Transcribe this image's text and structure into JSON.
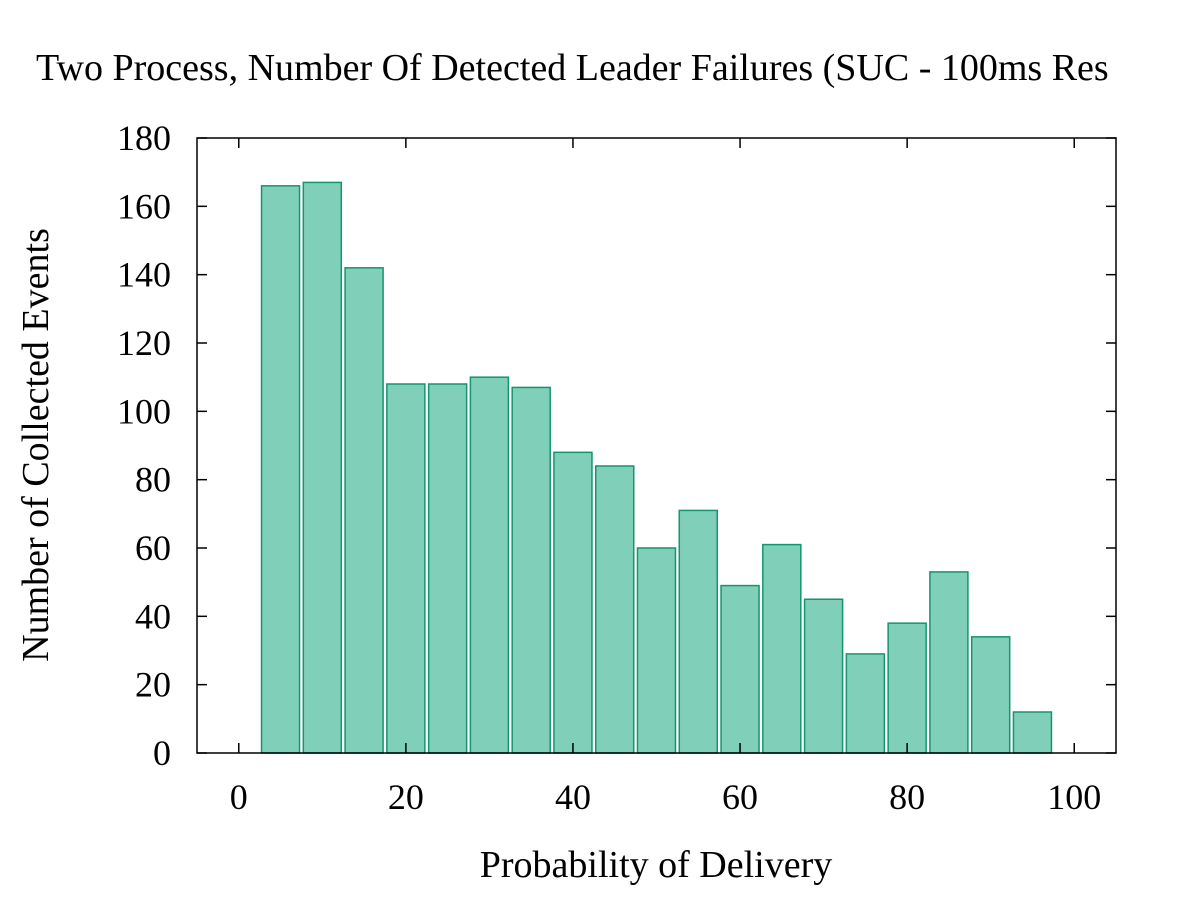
{
  "chart_data": {
    "type": "bar",
    "title": "Two Process, Number Of Detected Leader Failures (SUC - 100ms Res",
    "xlabel": "Probability of Delivery",
    "ylabel": "Number of Collected Events",
    "xlim": [
      -5,
      105
    ],
    "ylim": [
      0,
      180
    ],
    "xticks": [
      0,
      20,
      40,
      60,
      80,
      100
    ],
    "yticks": [
      0,
      20,
      40,
      60,
      80,
      100,
      120,
      140,
      160,
      180
    ],
    "grid": false,
    "legend": "none",
    "bin_width": 5,
    "x": [
      5,
      10,
      15,
      20,
      25,
      30,
      35,
      40,
      45,
      50,
      55,
      60,
      65,
      70,
      75,
      80,
      85,
      90,
      95
    ],
    "values": [
      166,
      167,
      142,
      108,
      108,
      110,
      107,
      88,
      84,
      60,
      71,
      49,
      61,
      45,
      29,
      38,
      53,
      34,
      12
    ],
    "bar_fill": "#80cfb8",
    "bar_stroke": "#13966e"
  }
}
